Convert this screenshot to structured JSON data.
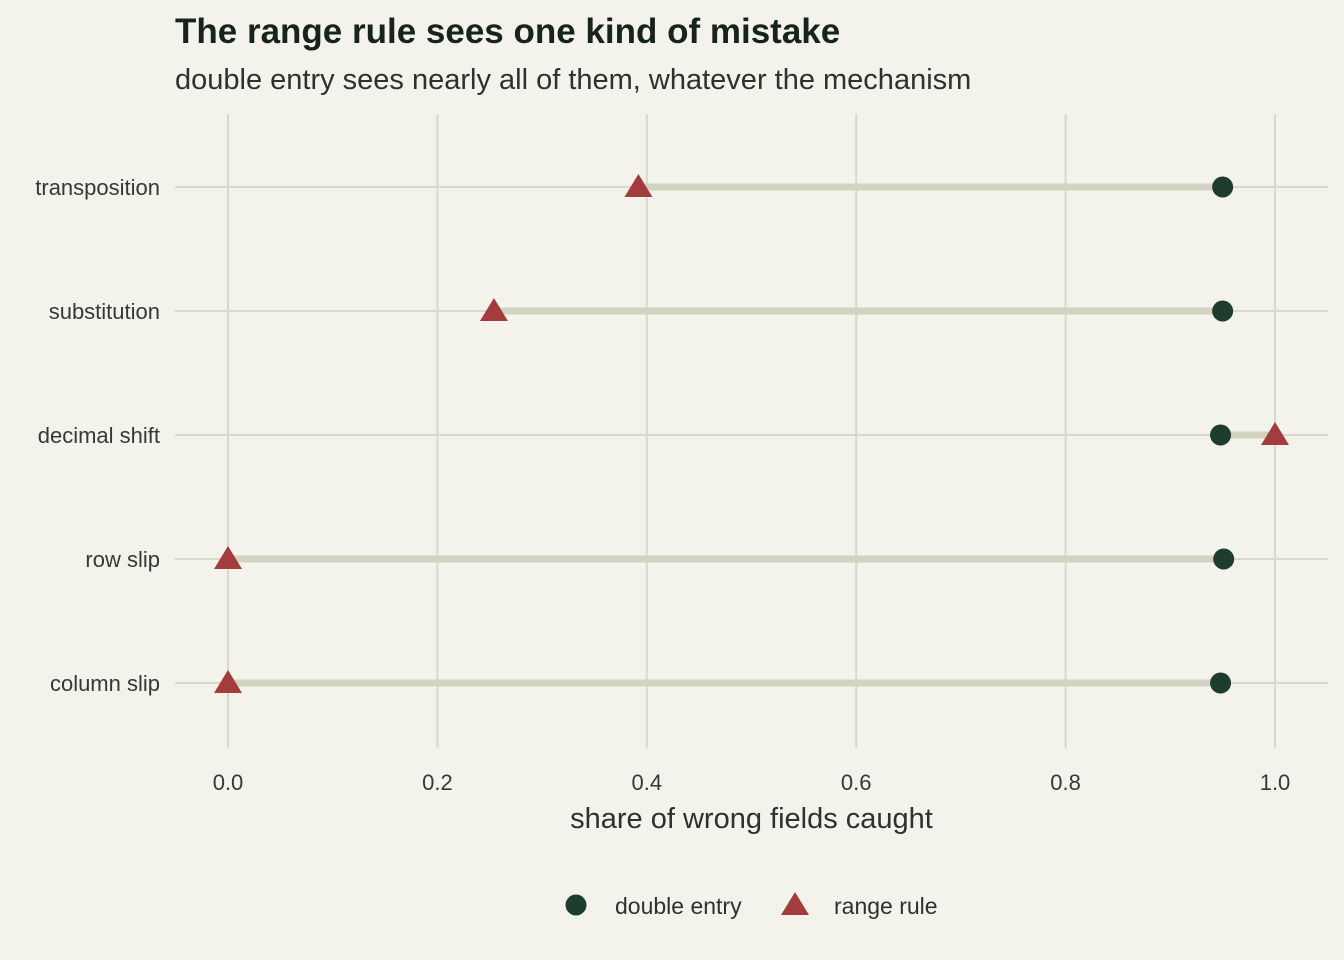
{
  "chart_data": {
    "type": "dumbbell",
    "title": "The range rule sees one kind of mistake",
    "subtitle": "double entry sees nearly all of them, whatever the mechanism",
    "xlabel": "share of wrong fields caught",
    "ylabel": "",
    "xlim": [
      -0.05,
      1.05
    ],
    "xticks": [
      0.0,
      0.2,
      0.4,
      0.6,
      0.8,
      1.0
    ],
    "xtick_labels": [
      "0.0",
      "0.2",
      "0.4",
      "0.6",
      "0.8",
      "1.0"
    ],
    "categories": [
      "transposition",
      "substitution",
      "decimal shift",
      "row slip",
      "column slip"
    ],
    "series": [
      {
        "name": "double entry",
        "marker": "circle",
        "color": "#1f3d2c",
        "values": [
          0.95,
          0.95,
          0.948,
          0.951,
          0.948
        ]
      },
      {
        "name": "range rule",
        "marker": "triangle",
        "color": "#a33c3c",
        "values": [
          0.392,
          0.254,
          1.0,
          0.0,
          0.0
        ]
      }
    ],
    "grid": true,
    "legend_position": "bottom",
    "colors": {
      "background": "#f3f2eb",
      "grid": "#d8d8cb",
      "segment": "#d2d3c1"
    }
  }
}
